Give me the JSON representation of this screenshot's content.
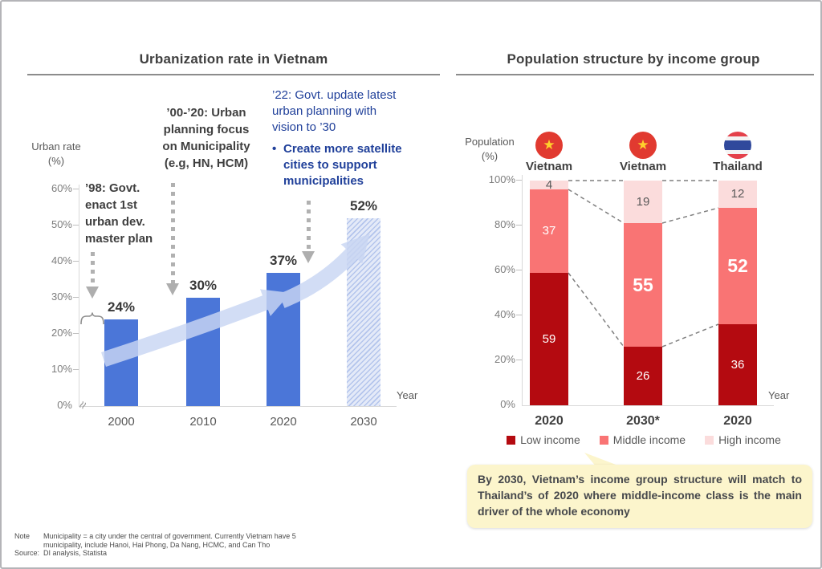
{
  "colors": {
    "bar_blue": "#4b76d8",
    "trend_arrow": "#c9d6f3",
    "low_income": "#b40a10",
    "middle_income": "#f97474",
    "high_income": "#fbdcdc",
    "annotation_blue": "#20409a",
    "callout_bg": "#fcf5cc",
    "title_gray": "#3f3f3f"
  },
  "icons": {
    "star": "★",
    "bullet": "•",
    "axis_break": "≈"
  },
  "chart_data": [
    {
      "type": "bar",
      "title": "Urbanization rate in Vietnam",
      "ylabel_lines": [
        "Urban rate",
        "(%)"
      ],
      "xlabel": "Year",
      "categories": [
        "2000",
        "2010",
        "2020",
        "2030"
      ],
      "values": [
        24,
        30,
        37,
        52
      ],
      "value_labels": [
        "24%",
        "30%",
        "37%",
        "52%"
      ],
      "yticks": [
        "60%",
        "50%",
        "40%",
        "30%",
        "20%",
        "10%",
        "0%"
      ],
      "ylim": [
        0,
        60
      ],
      "grid": false,
      "style_note": "2030 bar drawn with hatched light-blue projection pattern; light blue trend arrow rises across bars; axis break symbol at origin",
      "annotations": {
        "ann_98": {
          "lines": [
            "’98: Govt.",
            "enact 1st",
            "urban dev.",
            "master plan"
          ]
        },
        "ann_0020": {
          "lines": [
            "’00-’20: Urban",
            "planning focus",
            "on Municipality",
            "(e.g, HN, HCM)"
          ]
        },
        "ann_22": {
          "lines": [
            "’22: Govt. update latest",
            "urban planning with",
            "vision to ’30"
          ]
        },
        "ann_bullet": {
          "lines": [
            "Create more satellite",
            "cities to support",
            "municipalities"
          ]
        }
      }
    },
    {
      "type": "stacked_bar",
      "title": "Population structure by income group",
      "ylabel_lines": [
        "Population",
        "(%)"
      ],
      "xlabel": "Year",
      "group_labels": [
        "Vietnam",
        "Vietnam",
        "Thailand"
      ],
      "categories": [
        "2020",
        "2030*",
        "2020"
      ],
      "yticks": [
        "100%",
        "80%",
        "60%",
        "40%",
        "20%",
        "0%"
      ],
      "ylim": [
        0,
        100
      ],
      "grid": false,
      "legend_position": "bottom",
      "series": [
        {
          "name": "Low income",
          "color": "#b40a10",
          "values": [
            59,
            26,
            36
          ]
        },
        {
          "name": "Middle income",
          "color": "#f97474",
          "values": [
            37,
            55,
            52
          ]
        },
        {
          "name": "High income",
          "color": "#fbdcdc",
          "values": [
            4,
            19,
            12
          ]
        }
      ],
      "style_note": "dashed connector lines link segment boundaries between adjacent bars"
    }
  ],
  "callout": {
    "text": "By 2030, Vietnam’s income group structure will match to Thailand’s of 2020 where middle-income class is the main driver of the whole economy"
  },
  "footer": {
    "note_label": "Note",
    "note_lines": [
      "Municipality = a city under the central of government. Currently Vietnam have 5",
      "municipality, include Hanoi, Hai Phong, Da Nang, HCMC, and Can Tho"
    ],
    "source_label": "Source:",
    "source_text": "DI analysis, Statista"
  }
}
